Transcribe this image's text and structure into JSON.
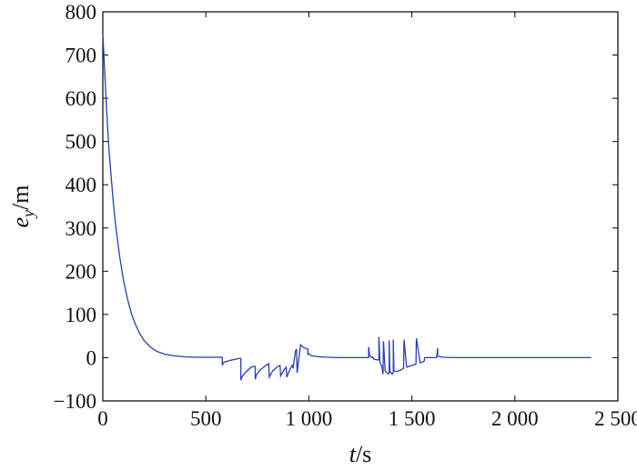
{
  "chart_data": {
    "type": "line",
    "xlabel": "t/s",
    "ylabel": "e_y/m",
    "xlabel_parts": {
      "symbol": "t",
      "unit": "s"
    },
    "ylabel_parts": {
      "symbol": "e",
      "subscript": "y",
      "unit": "m"
    },
    "xlim": [
      0,
      2500
    ],
    "ylim": [
      -100,
      800
    ],
    "xticks": [
      0,
      500,
      1000,
      1500,
      2000,
      2500
    ],
    "xtick_labels": [
      "0",
      "500",
      "1 000",
      "1 500",
      "2 000",
      "2 500"
    ],
    "yticks": [
      -100,
      0,
      100,
      200,
      300,
      400,
      500,
      600,
      700,
      800
    ],
    "ytick_labels": [
      "−100",
      "0",
      "100",
      "200",
      "300",
      "400",
      "500",
      "600",
      "700",
      "800"
    ],
    "grid": false,
    "line_color": "#2b3fa8",
    "series": [
      {
        "x": [
          0,
          10,
          20,
          30,
          40,
          50,
          60,
          80,
          100,
          120,
          140,
          160,
          180,
          200,
          230,
          260,
          300,
          350,
          400,
          450,
          500,
          580,
          580,
          585,
          590,
          620,
          660,
          670,
          670,
          675,
          690,
          720,
          735,
          740,
          740,
          745,
          760,
          790,
          805,
          805,
          808,
          825,
          850,
          860,
          860,
          863,
          880,
          890,
          890,
          893,
          910,
          920,
          920,
          923,
          935,
          940,
          940,
          943,
          960,
          970,
          990,
          995,
          995,
          998,
          1010,
          1050,
          1100,
          1150,
          1200,
          1250,
          1280,
          1290,
          1290,
          1295,
          1305,
          1310,
          1315,
          1330,
          1340,
          1340,
          1345,
          1355,
          1360,
          1360,
          1362,
          1370,
          1385,
          1390,
          1390,
          1393,
          1405,
          1410,
          1410,
          1413,
          1425,
          1450,
          1460,
          1460,
          1462,
          1475,
          1500,
          1520,
          1520,
          1522,
          1540,
          1560,
          1560,
          1562,
          1580,
          1600,
          1620,
          1625,
          1625,
          1628,
          1650,
          1700,
          1800,
          1900,
          2000,
          2100,
          2200,
          2300,
          2370
        ],
        "y": [
          750,
          650,
          560,
          480,
          420,
          365,
          315,
          240,
          180,
          135,
          100,
          75,
          55,
          40,
          25,
          15,
          8,
          4,
          2,
          1,
          1,
          1,
          -18,
          -12,
          -10,
          -6,
          -2,
          -2,
          -52,
          -45,
          -35,
          -22,
          -20,
          -20,
          -50,
          -40,
          -30,
          -18,
          -14,
          -14,
          -45,
          -30,
          -20,
          -18,
          -18,
          -42,
          -28,
          -22,
          -22,
          -45,
          -25,
          -18,
          -18,
          -25,
          15,
          20,
          20,
          -35,
          30,
          25,
          20,
          20,
          8,
          10,
          5,
          2,
          1,
          0,
          0,
          0,
          0,
          0,
          25,
          5,
          0,
          2,
          -3,
          -5,
          -5,
          48,
          -10,
          -22,
          -38,
          -38,
          38,
          -30,
          -38,
          -35,
          40,
          -32,
          -38,
          -35,
          42,
          -30,
          -32,
          -28,
          -25,
          -25,
          42,
          -22,
          -18,
          -15,
          -15,
          45,
          -12,
          -8,
          -8,
          0,
          0,
          0,
          0,
          22,
          5,
          3,
          1,
          0,
          0,
          0,
          0,
          0,
          0,
          0,
          0
        ]
      }
    ]
  }
}
